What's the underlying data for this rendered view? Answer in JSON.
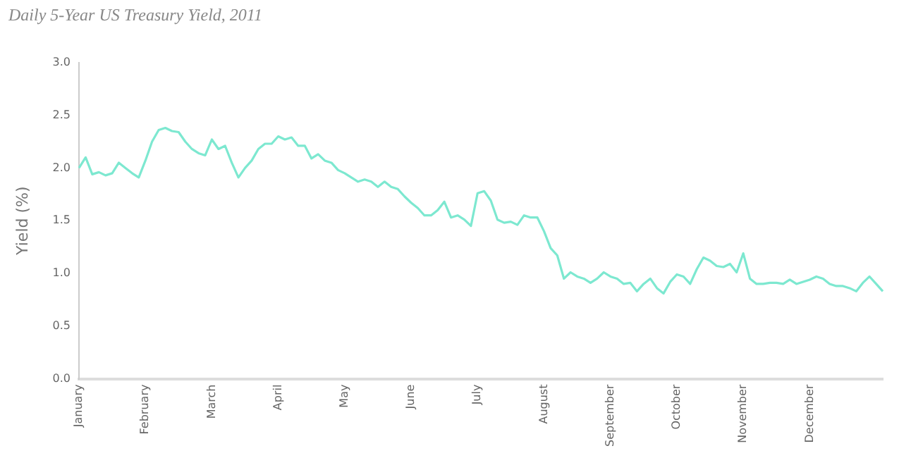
{
  "chart_data": {
    "type": "line",
    "title": "Daily 5-Year US Treasury Yield, 2011",
    "ylabel": "Yield (%)",
    "categories": [
      "January",
      null,
      null,
      null,
      null,
      null,
      null,
      null,
      null,
      null,
      "February",
      null,
      null,
      null,
      null,
      null,
      null,
      null,
      null,
      null,
      "March",
      null,
      null,
      null,
      null,
      null,
      null,
      null,
      null,
      null,
      "April",
      null,
      null,
      null,
      null,
      null,
      null,
      null,
      null,
      null,
      "May",
      null,
      null,
      null,
      null,
      null,
      null,
      null,
      null,
      null,
      "June",
      null,
      null,
      null,
      null,
      null,
      null,
      null,
      null,
      null,
      "July",
      null,
      null,
      null,
      null,
      null,
      null,
      null,
      null,
      null,
      "August",
      null,
      null,
      null,
      null,
      null,
      null,
      null,
      null,
      null,
      "September",
      null,
      null,
      null,
      null,
      null,
      null,
      null,
      null,
      null,
      "October",
      null,
      null,
      null,
      null,
      null,
      null,
      null,
      null,
      null,
      "November",
      null,
      null,
      null,
      null,
      null,
      null,
      null,
      null,
      null,
      "December",
      null,
      null,
      null,
      null,
      null,
      null,
      null,
      null,
      null,
      null,
      null
    ],
    "series": [
      {
        "color": "#7de8d0",
        "values": [
          2.0,
          2.1,
          1.94,
          1.96,
          1.93,
          1.95,
          2.05,
          2.0,
          1.95,
          1.91,
          2.07,
          2.25,
          2.36,
          2.38,
          2.35,
          2.34,
          2.25,
          2.18,
          2.14,
          2.12,
          2.27,
          2.18,
          2.21,
          2.05,
          1.91,
          2.0,
          2.07,
          2.18,
          2.23,
          2.23,
          2.3,
          2.27,
          2.29,
          2.21,
          2.21,
          2.09,
          2.13,
          2.07,
          2.05,
          1.98,
          1.95,
          1.91,
          1.87,
          1.89,
          1.87,
          1.82,
          1.87,
          1.82,
          1.8,
          1.73,
          1.67,
          1.62,
          1.55,
          1.55,
          1.6,
          1.68,
          1.53,
          1.55,
          1.51,
          1.45,
          1.76,
          1.78,
          1.69,
          1.51,
          1.48,
          1.49,
          1.46,
          1.55,
          1.53,
          1.53,
          1.4,
          1.24,
          1.17,
          0.95,
          1.01,
          0.97,
          0.95,
          0.91,
          0.95,
          1.01,
          0.97,
          0.95,
          0.9,
          0.91,
          0.83,
          0.9,
          0.95,
          0.86,
          0.81,
          0.92,
          0.99,
          0.97,
          0.9,
          1.04,
          1.15,
          1.12,
          1.07,
          1.06,
          1.09,
          1.01,
          1.19,
          0.95,
          0.9,
          0.9,
          0.91,
          0.91,
          0.9,
          0.94,
          0.9,
          0.92,
          0.94,
          0.97,
          0.95,
          0.9,
          0.88,
          0.88,
          0.86,
          0.83,
          0.91,
          0.97,
          0.9,
          0.83
        ]
      }
    ],
    "ylim": [
      0,
      3
    ],
    "yticks": [
      {
        "value": 0,
        "label": "0.0"
      },
      {
        "value": 0.5,
        "label": "0.5"
      },
      {
        "value": 1,
        "label": "1.0"
      },
      {
        "value": 1.5,
        "label": "1.5"
      },
      {
        "value": 2,
        "label": "2.0"
      },
      {
        "value": 2.5,
        "label": "2.5"
      },
      {
        "value": 3,
        "label": "3.0"
      }
    ],
    "grid": false,
    "legend": false,
    "marker": "none",
    "line_style": "solid"
  }
}
